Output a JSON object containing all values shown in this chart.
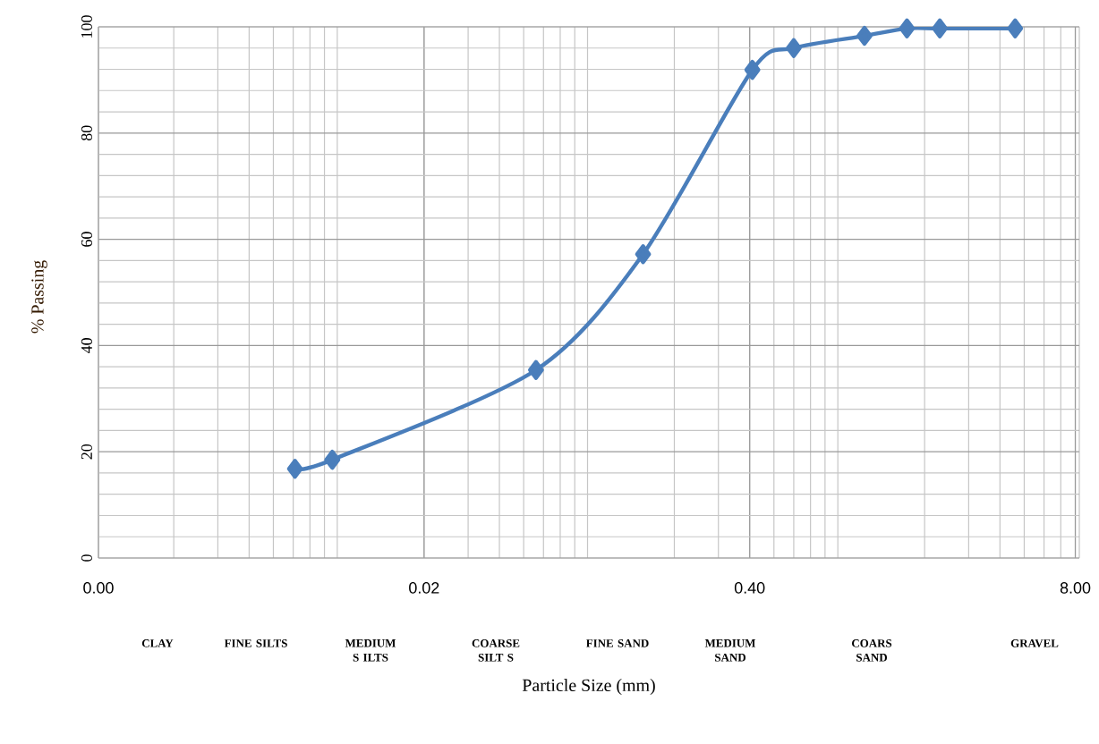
{
  "chart_data": {
    "type": "line",
    "xlabel": "Particle Size (mm)",
    "ylabel": "% Passing",
    "x": [
      0.0061,
      0.0086,
      0.056,
      0.15,
      0.41,
      0.6,
      1.15,
      1.7,
      2.3,
      4.6
    ],
    "series": [
      {
        "color": "#4a7ebb",
        "values": [
          16.8,
          18.5,
          35.4,
          57.2,
          91.9,
          96,
          98.3,
          99.7,
          99.7,
          99.7
        ]
      }
    ],
    "xlim": [
      0.001,
      8.3
    ],
    "ylim": [
      0,
      100
    ],
    "xticks": [
      {
        "value": 0.001,
        "label": "0.00"
      },
      {
        "value": 0.02,
        "label": "0.02"
      },
      {
        "value": 0.4,
        "label": "0.40"
      },
      {
        "value": 8,
        "label": "8.00"
      }
    ],
    "yticks": [
      0,
      20,
      40,
      60,
      80,
      100
    ],
    "log": "x",
    "grid": true,
    "marker": "diamond",
    "line_style": "solid",
    "annotations": [
      "CLAY",
      "FINE SILTS",
      "MEDIUM S ILTS",
      "COARSE SILT S",
      "FINE SAND",
      "MEDIUM SAND",
      "COARS SAND",
      "GRAVEL"
    ]
  }
}
